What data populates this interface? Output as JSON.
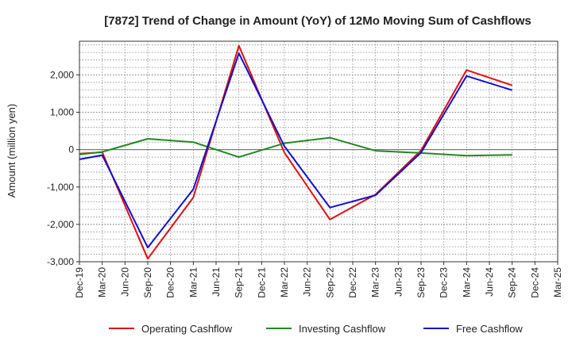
{
  "chart_data": {
    "type": "line",
    "title": "[7872]  Trend of Change in Amount (YoY) of 12Mo Moving Sum of Cashflows",
    "ylabel": "Amount (million yen)",
    "xlabel": "",
    "ylim": [
      -3000,
      2900
    ],
    "yticks": [
      2000,
      1000,
      0,
      -1000,
      -2000,
      -3000
    ],
    "ytick_labels": [
      "2,000",
      "1,000",
      "0",
      "-1,000",
      "-2,000",
      "-3,000"
    ],
    "categories": [
      "Dec-19",
      "Mar-20",
      "Jun-20",
      "Sep-20",
      "Dec-20",
      "Mar-21",
      "Jun-21",
      "Sep-21",
      "Dec-21",
      "Mar-22",
      "Jun-22",
      "Sep-22",
      "Dec-22",
      "Mar-23",
      "Jun-23",
      "Sep-23",
      "Dec-23",
      "Mar-24",
      "Jun-24",
      "Sep-24",
      "Dec-24",
      "Mar-25"
    ],
    "x_index": [
      0,
      2,
      6,
      8,
      9,
      11,
      12,
      14,
      16,
      17,
      18,
      19
    ],
    "grid": true,
    "legend_position": "bottom",
    "series": [
      {
        "name": "Operating Cashflow",
        "color": "#dd1111",
        "points": [
          [
            0,
            -110
          ],
          [
            1,
            -70
          ],
          [
            3,
            -2920
          ],
          [
            5,
            -1280
          ],
          [
            7,
            2780
          ],
          [
            9,
            -80
          ],
          [
            11,
            -1870
          ],
          [
            13,
            -1200
          ],
          [
            15,
            -20
          ],
          [
            17,
            2130
          ],
          [
            19,
            1720
          ]
        ]
      },
      {
        "name": "Investing Cashflow",
        "color": "#228822",
        "points": [
          [
            0,
            -130
          ],
          [
            1,
            -60
          ],
          [
            3,
            290
          ],
          [
            5,
            200
          ],
          [
            7,
            -200
          ],
          [
            9,
            170
          ],
          [
            11,
            320
          ],
          [
            13,
            -30
          ],
          [
            15,
            -90
          ],
          [
            17,
            -160
          ],
          [
            19,
            -140
          ]
        ]
      },
      {
        "name": "Free Cashflow",
        "color": "#1111cc",
        "points": [
          [
            0,
            -260
          ],
          [
            1,
            -150
          ],
          [
            3,
            -2620
          ],
          [
            5,
            -1060
          ],
          [
            7,
            2580
          ],
          [
            9,
            90
          ],
          [
            11,
            -1550
          ],
          [
            13,
            -1220
          ],
          [
            15,
            -80
          ],
          [
            17,
            1970
          ],
          [
            19,
            1590
          ]
        ]
      }
    ]
  }
}
